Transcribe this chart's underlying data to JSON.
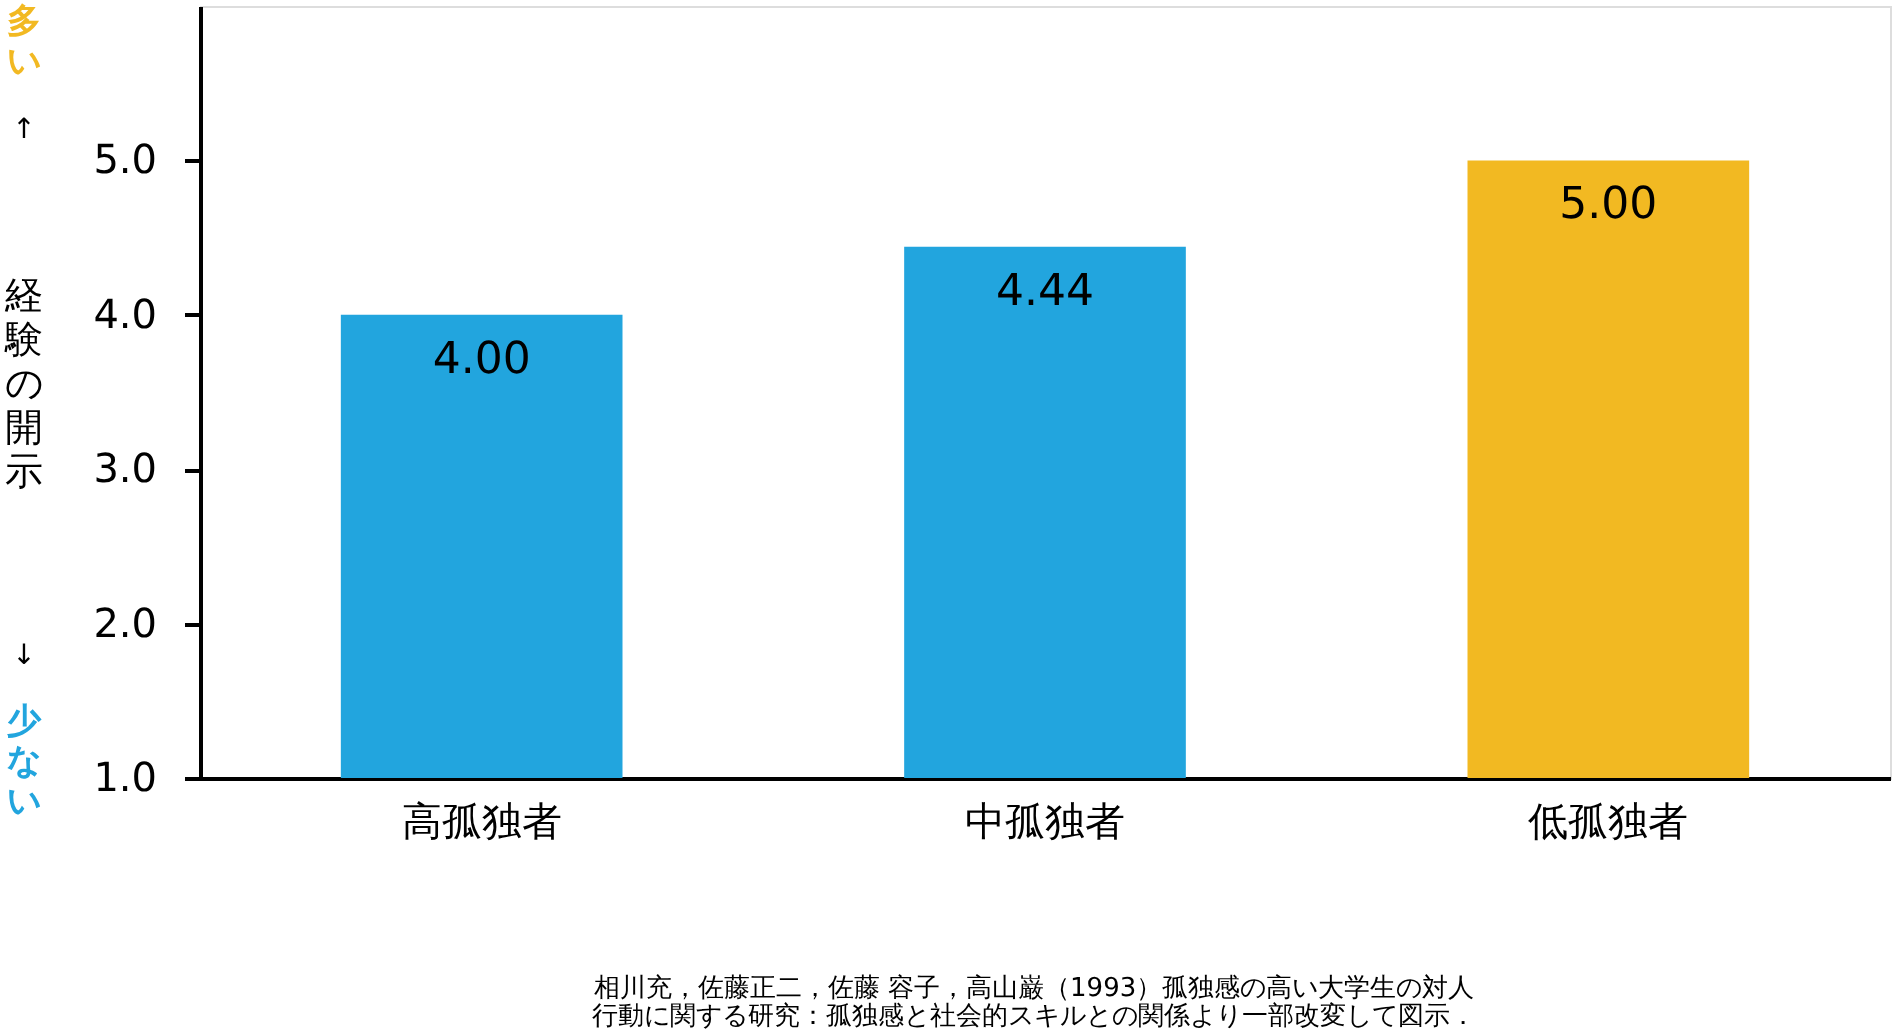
{
  "chart_data": {
    "type": "bar",
    "categories": [
      "高孤独者",
      "中孤独者",
      "低孤独者"
    ],
    "values": [
      4.0,
      4.44,
      5.0
    ],
    "colors": [
      "#22a5de",
      "#22a5de",
      "#f2b922"
    ],
    "value_labels": [
      "4.00",
      "4.44",
      "5.00"
    ],
    "ylabel": "経験の開示",
    "ylim": [
      1,
      6
    ],
    "yticks": [
      {
        "value": 1,
        "label": "1.0"
      },
      {
        "value": 2,
        "label": "2.0"
      },
      {
        "value": 3,
        "label": "3.0"
      },
      {
        "value": 4,
        "label": "4.0"
      },
      {
        "value": 5,
        "label": "5.0"
      }
    ],
    "annotations": [
      "多い",
      "↑",
      "↓",
      "少ない",
      "相川充，佐藤正二，佐藤 容子，高山巌（1993）孤独感の高い大学生の対人",
      "行動に関する研究：孤独感と社会的スキルとの関係より一部改変して図示．"
    ]
  }
}
